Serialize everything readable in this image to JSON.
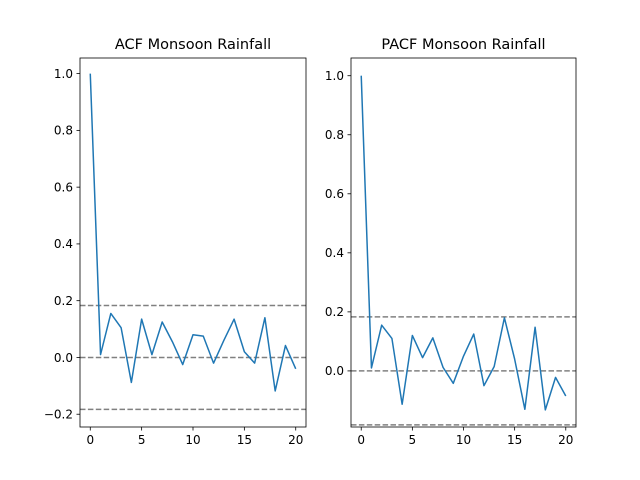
{
  "chart_data": [
    {
      "type": "line",
      "title": "ACF Monsoon Rainfall",
      "xlabel": "",
      "ylabel": "",
      "xlim": [
        -1,
        21
      ],
      "ylim": [
        -0.245,
        1.055
      ],
      "x_ticks": [
        0,
        5,
        10,
        15,
        20
      ],
      "y_ticks": [
        -0.2,
        0.0,
        0.2,
        0.4,
        0.6,
        0.8,
        1.0
      ],
      "y_tick_labels": [
        "−0.2",
        "0.0",
        "0.2",
        "0.4",
        "0.6",
        "0.8",
        "1.0"
      ],
      "grid": false,
      "series": [
        {
          "x": [
            0,
            1,
            2,
            3,
            4,
            5,
            6,
            7,
            8,
            9,
            10,
            11,
            12,
            13,
            14,
            15,
            16,
            17,
            18,
            19,
            20
          ],
          "values": [
            1.0,
            0.01,
            0.155,
            0.105,
            -0.088,
            0.135,
            0.01,
            0.125,
            0.055,
            -0.025,
            0.08,
            0.075,
            -0.02,
            0.06,
            0.135,
            0.02,
            -0.02,
            0.14,
            -0.118,
            0.042,
            -0.04
          ],
          "color": "#1f77b4"
        }
      ],
      "reference_lines": [
        {
          "y": 0.183,
          "color": "#808080",
          "style": "dashed"
        },
        {
          "y": 0.0,
          "color": "#808080",
          "style": "dashed"
        },
        {
          "y": -0.183,
          "color": "#808080",
          "style": "dashed"
        }
      ]
    },
    {
      "type": "line",
      "title": "PACF Monsoon Rainfall",
      "xlabel": "",
      "ylabel": "",
      "xlim": [
        -1,
        21
      ],
      "ylim": [
        -0.19,
        1.06
      ],
      "x_ticks": [
        0,
        5,
        10,
        15,
        20
      ],
      "y_ticks": [
        0.0,
        0.2,
        0.4,
        0.6,
        0.8,
        1.0
      ],
      "y_tick_labels": [
        "0.0",
        "0.2",
        "0.4",
        "0.6",
        "0.8",
        "1.0"
      ],
      "grid": false,
      "series": [
        {
          "x": [
            0,
            1,
            2,
            3,
            4,
            5,
            6,
            7,
            8,
            9,
            10,
            11,
            12,
            13,
            14,
            15,
            16,
            17,
            18,
            19,
            20
          ],
          "values": [
            1.0,
            0.01,
            0.155,
            0.11,
            -0.113,
            0.12,
            0.045,
            0.112,
            0.012,
            -0.042,
            0.05,
            0.125,
            -0.05,
            0.015,
            0.18,
            0.04,
            -0.13,
            0.148,
            -0.132,
            -0.022,
            -0.085
          ],
          "color": "#1f77b4"
        }
      ],
      "reference_lines": [
        {
          "y": 0.183,
          "color": "#808080",
          "style": "dashed"
        },
        {
          "y": 0.0,
          "color": "#808080",
          "style": "dashed"
        },
        {
          "y": -0.183,
          "color": "#808080",
          "style": "dashed"
        }
      ]
    }
  ]
}
